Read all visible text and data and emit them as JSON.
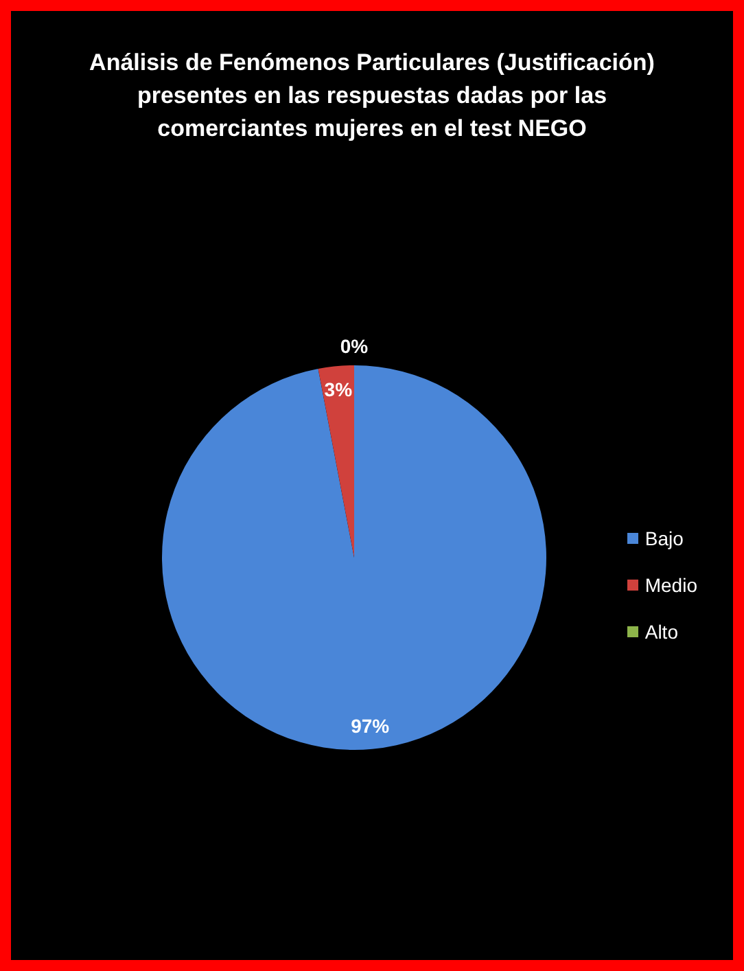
{
  "chart_data": {
    "type": "pie",
    "title": "Análisis de Fenómenos Particulares (Justificación) presentes en las respuestas dadas por las comerciantes mujeres en el test NEGO",
    "categories": [
      "Bajo",
      "Medio",
      "Alto"
    ],
    "values": [
      97,
      3,
      0
    ],
    "colors": [
      "#4a86d8",
      "#d0413c",
      "#8db44a"
    ],
    "value_labels": [
      "97%",
      "3%",
      "0%"
    ],
    "legend": "right"
  }
}
